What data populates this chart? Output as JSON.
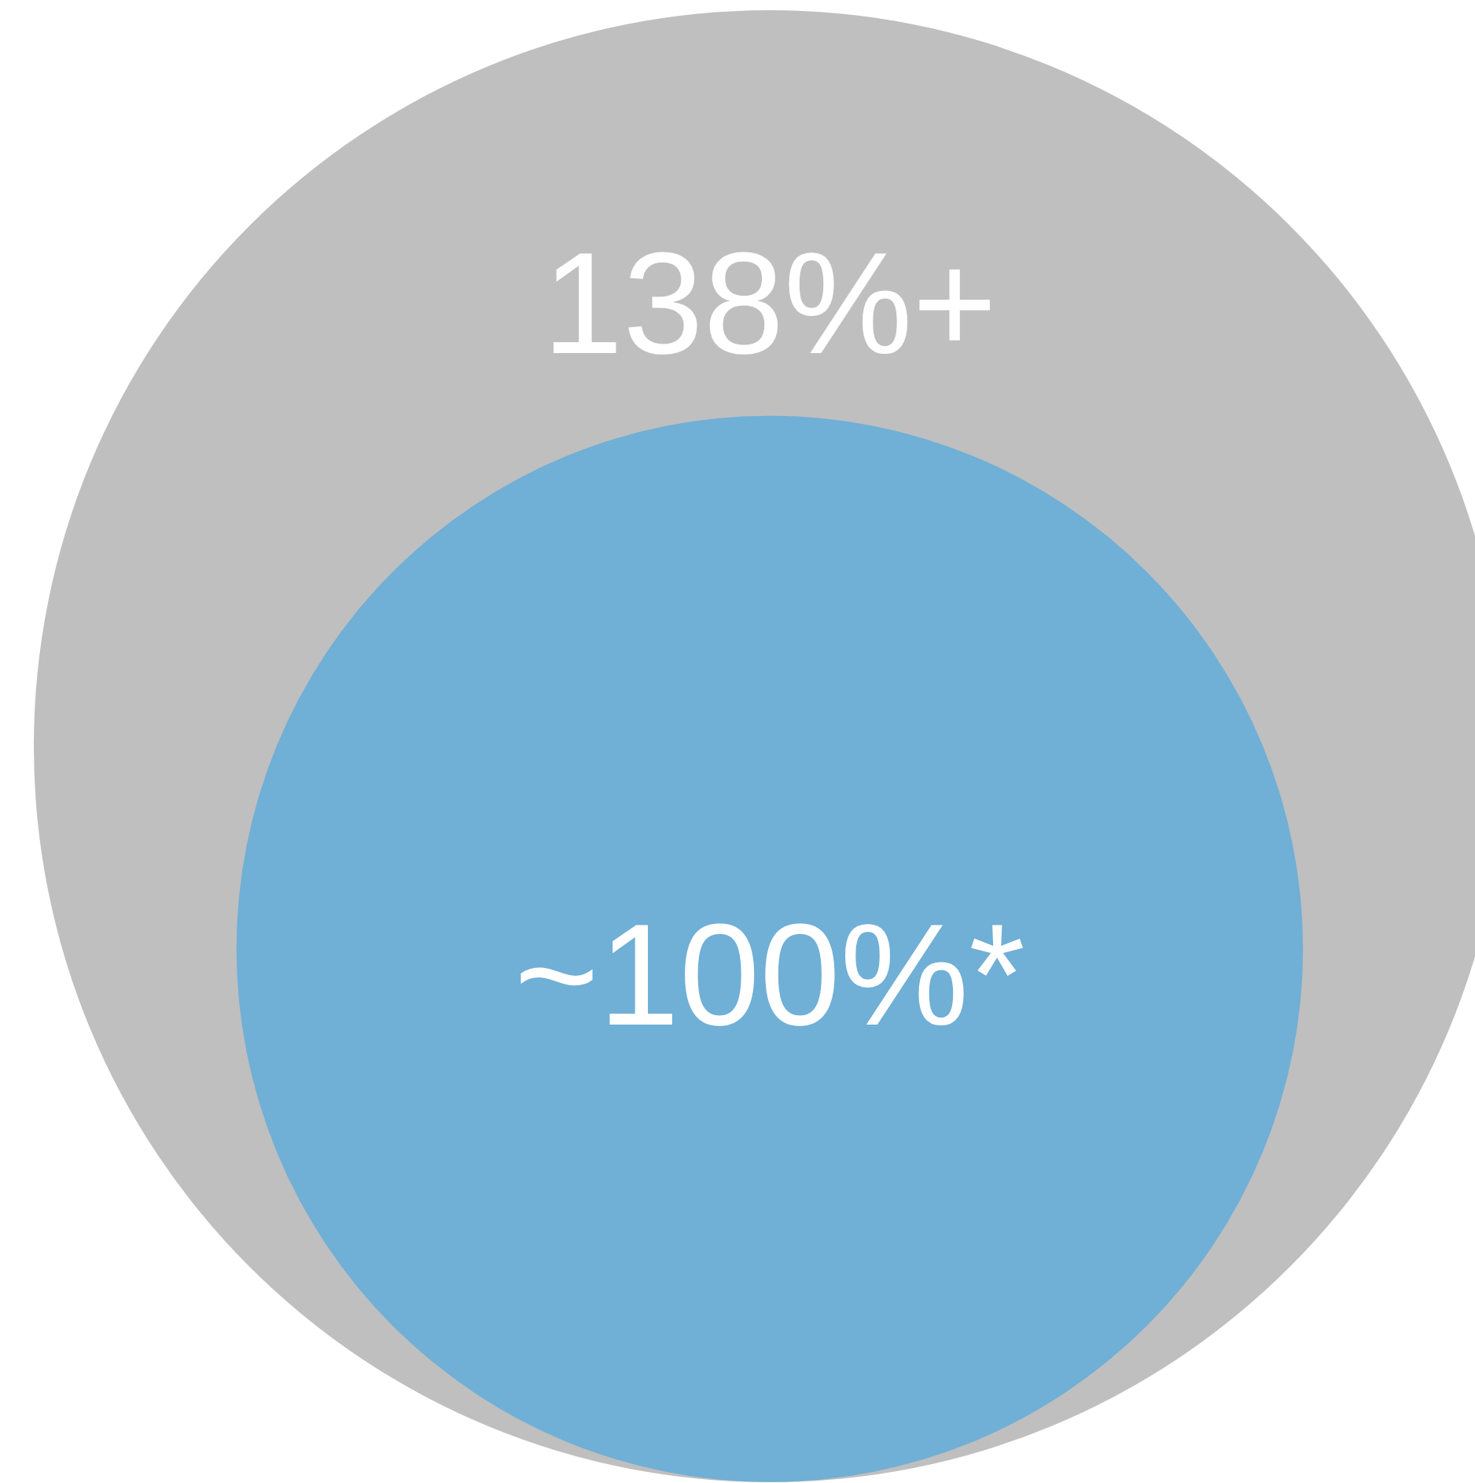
{
  "chart_data": {
    "type": "other",
    "values": [
      138,
      100
    ],
    "value_labels": [
      "138%+",
      "~100%*"
    ],
    "colors": [
      "#bfbfbf",
      "#70afd6"
    ]
  }
}
